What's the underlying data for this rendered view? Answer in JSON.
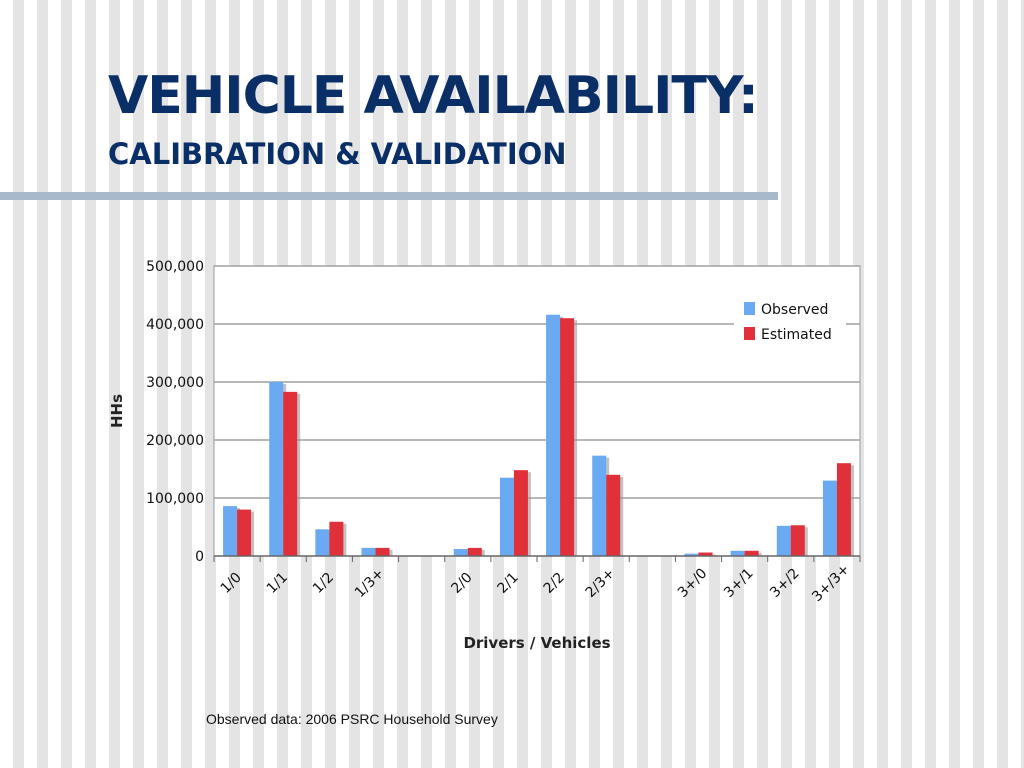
{
  "slide": {
    "title": "VEHICLE AVAILABILITY:",
    "subtitle": "CALIBRATION & VALIDATION",
    "footnote": "Observed data: 2006 PSRC Household Survey"
  },
  "colors": {
    "title": "#0a2f66",
    "observed": "#6aaaf2",
    "estimated": "#e0303a",
    "rule": "#a8b9cc"
  },
  "chart_data": {
    "type": "bar",
    "xlabel": "Drivers / Vehicles",
    "ylabel": "HHs",
    "ylim": [
      0,
      500000
    ],
    "yticks": [
      0,
      100000,
      200000,
      300000,
      400000,
      500000
    ],
    "ytick_labels": [
      "0",
      "100,000",
      "200,000",
      "300,000",
      "400,000",
      "500,000"
    ],
    "grid": true,
    "legend_position": "top-right",
    "categories": [
      "1/0",
      "1/1",
      "1/2",
      "1/3+",
      "2/0",
      "2/1",
      "2/2",
      "2/3+",
      "3+/0",
      "3+/1",
      "3+/2",
      "3+/3+"
    ],
    "series": [
      {
        "name": "Observed",
        "values": [
          86000,
          300000,
          46000,
          14000,
          12000,
          135000,
          416000,
          173000,
          4000,
          9000,
          52000,
          130000
        ]
      },
      {
        "name": "Estimated",
        "values": [
          80000,
          283000,
          59000,
          14000,
          14000,
          148000,
          410000,
          140000,
          6000,
          9000,
          53000,
          160000
        ]
      }
    ]
  }
}
